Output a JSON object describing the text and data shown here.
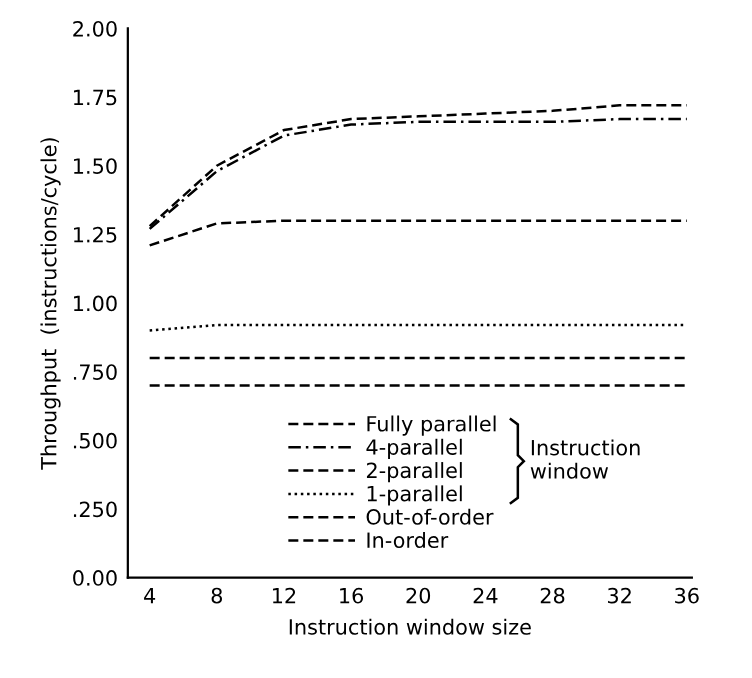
{
  "chart_data": {
    "type": "line",
    "xlabel": "Instruction window size",
    "ylabel": "Throughput  (instructions/cycle)",
    "x": [
      4,
      8,
      12,
      16,
      20,
      24,
      28,
      32,
      36
    ],
    "series": [
      {
        "name": "Fully parallel",
        "color": "#000000",
        "line_style": "dashed",
        "values": [
          1.28,
          1.5,
          1.63,
          1.67,
          1.68,
          1.69,
          1.7,
          1.72,
          1.72
        ]
      },
      {
        "name": "4-parallel",
        "color": "#000000",
        "line_style": "dashdot",
        "values": [
          1.27,
          1.48,
          1.61,
          1.65,
          1.66,
          1.66,
          1.66,
          1.67,
          1.67
        ]
      },
      {
        "name": "2-parallel",
        "color": "#000000",
        "line_style": "dashed",
        "values": [
          1.21,
          1.29,
          1.3,
          1.3,
          1.3,
          1.3,
          1.3,
          1.3,
          1.3
        ]
      },
      {
        "name": "1-parallel",
        "color": "#000000",
        "line_style": "dotted",
        "values": [
          0.9,
          0.92,
          0.92,
          0.92,
          0.92,
          0.92,
          0.92,
          0.92,
          0.92
        ]
      },
      {
        "name": "Out-of-order",
        "color": "#000000",
        "line_style": "dashed",
        "values": [
          0.8,
          0.8,
          0.8,
          0.8,
          0.8,
          0.8,
          0.8,
          0.8,
          0.8
        ]
      },
      {
        "name": "In-order",
        "color": "#000000",
        "line_style": "dashed",
        "values": [
          0.7,
          0.7,
          0.7,
          0.7,
          0.7,
          0.7,
          0.7,
          0.7,
          0.7
        ]
      }
    ],
    "xlim": [
      2.7,
      36.3
    ],
    "xticks": [
      4,
      8,
      12,
      16,
      20,
      24,
      28,
      32,
      36
    ],
    "ylim": [
      0,
      2
    ],
    "yticks": [
      {
        "value": 0,
        "label": "0.00"
      },
      {
        "value": 0.25,
        "label": ".250"
      },
      {
        "value": 0.5,
        "label": ".500"
      },
      {
        "value": 0.75,
        "label": ".750"
      },
      {
        "value": 1,
        "label": "1.00"
      },
      {
        "value": 1.25,
        "label": "1.25"
      },
      {
        "value": 1.5,
        "label": "1.50"
      },
      {
        "value": 1.75,
        "label": "1.75"
      },
      {
        "value": 2,
        "label": "2.00"
      }
    ],
    "annotations": [
      "Instruction\nwindow"
    ],
    "legend": "bottom",
    "grid": false,
    "marker": "none"
  }
}
